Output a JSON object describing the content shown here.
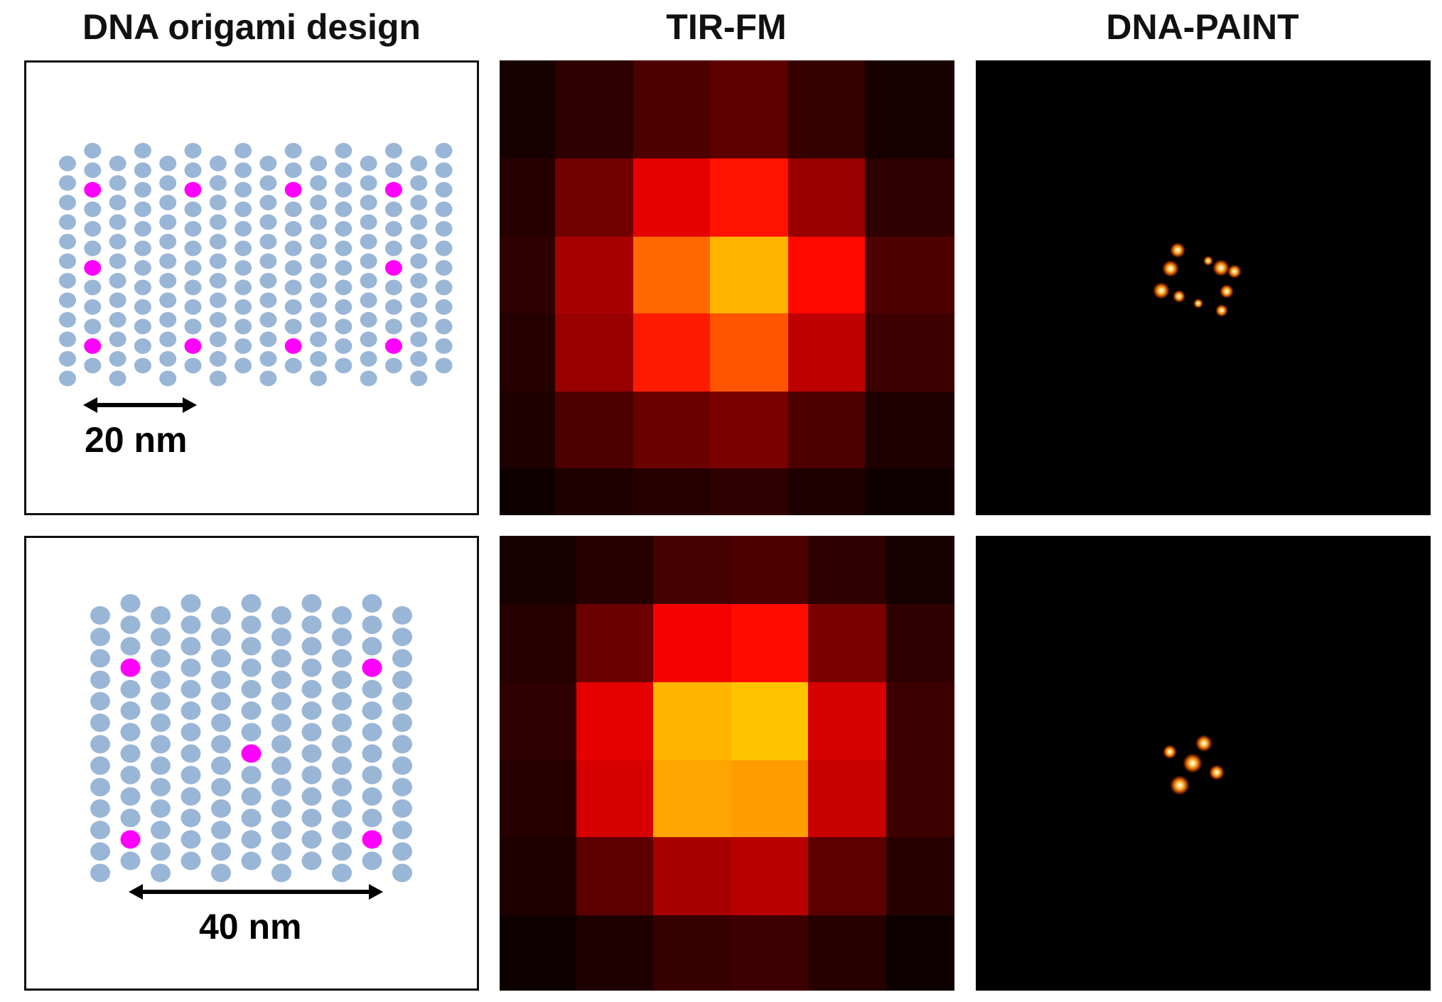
{
  "columns": {
    "design": "DNA origami design",
    "tirfm": "TIR-FM",
    "paint": "DNA-PAINT"
  },
  "rows": [
    {
      "scale_label": "20 nm",
      "scale_arrow": "double-arrow-icon"
    },
    {
      "scale_label": "40 nm",
      "scale_arrow": "double-arrow-icon"
    }
  ],
  "colors": {
    "staple": "#9ab6d6",
    "docking_site": "#ff00ff",
    "background_dark": "#000000",
    "hot_low": "#3a0000",
    "hot_mid": "#8e0a00",
    "hot_high": "#ff8c00"
  }
}
